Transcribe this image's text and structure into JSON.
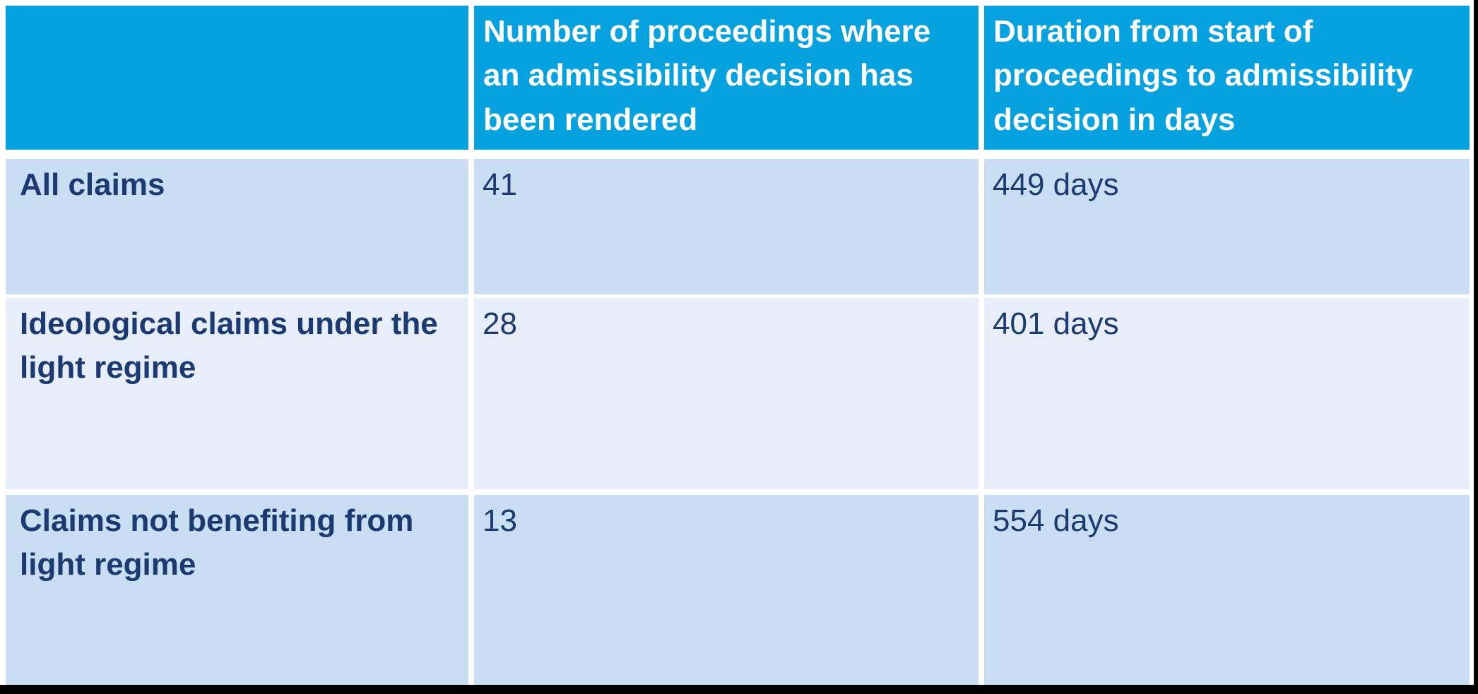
{
  "colors": {
    "header_bg": "#06A2DF",
    "band_strong_bg": "#C9DEF2",
    "band_light_bg": "#E7EEF9",
    "header_text": "#FFFFFF",
    "body_text": "#1B3A72",
    "gutter": "#FFFFFF",
    "letterbox_bar": "#000000"
  },
  "table": {
    "header": {
      "col1": "",
      "col2": "Number of proceedings where\nan admissibility decision has\nbeen rendered",
      "col3": "Duration from start of\nproceedings to admissibility\ndecision in days"
    },
    "rows": [
      {
        "label": "All claims",
        "proceedings": "41",
        "duration": "449 days"
      },
      {
        "label": "Ideological claims under the\nlight regime",
        "proceedings": "28",
        "duration": "401 days"
      },
      {
        "label": "Claims not benefiting from\nlight regime",
        "proceedings": "13",
        "duration": "554 days"
      }
    ]
  },
  "chart_data": {
    "type": "table",
    "title": "",
    "columns": [
      "",
      "Number of proceedings where an admissibility decision has been rendered",
      "Duration from start of proceedings to admissibility decision in days"
    ],
    "categories": [
      "All claims",
      "Ideological claims under the light regime",
      "Claims not benefiting from light regime"
    ],
    "series": [
      {
        "name": "Number of proceedings where an admissibility decision has been rendered",
        "values": [
          41,
          28,
          13
        ]
      },
      {
        "name": "Duration from start of proceedings to admissibility decision in days",
        "values": [
          449,
          401,
          554
        ],
        "unit": "days"
      }
    ],
    "cells": [
      [
        "All claims",
        "41",
        "449 days"
      ],
      [
        "Ideological claims under the light regime",
        "28",
        "401 days"
      ],
      [
        "Claims not benefiting from light regime",
        "13",
        "554 days"
      ]
    ]
  }
}
